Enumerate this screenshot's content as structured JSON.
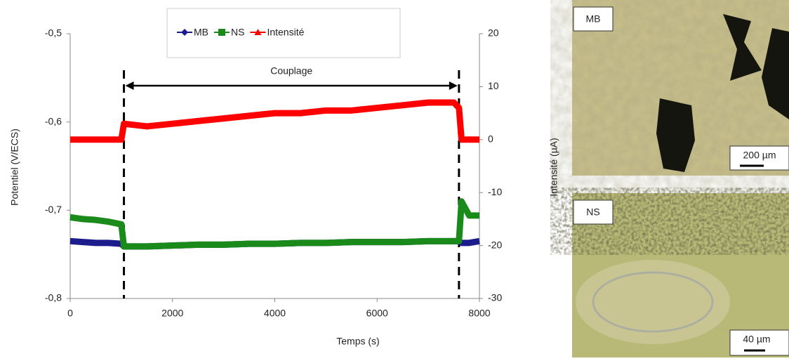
{
  "chart_data": {
    "type": "line",
    "xlabel": "Temps (s)",
    "ylabel": "Potentiel (V/ECS)",
    "y2label": "Intensité (µA)",
    "x": [
      0,
      250,
      500,
      750,
      1000,
      1050,
      1500,
      2000,
      2500,
      3000,
      3500,
      4000,
      4500,
      5000,
      5500,
      6000,
      6500,
      7000,
      7500,
      7600,
      7650,
      7800,
      8000
    ],
    "series": [
      {
        "name": "MB",
        "color": "#1c1c8c",
        "marker": "diamond",
        "values": [
          -0.735,
          -0.736,
          -0.737,
          -0.737,
          -0.738,
          -0.741,
          -0.741,
          -0.74,
          -0.739,
          -0.739,
          -0.738,
          -0.738,
          -0.737,
          -0.737,
          -0.736,
          -0.736,
          -0.736,
          -0.735,
          -0.735,
          -0.735,
          -0.737,
          -0.737,
          -0.735
        ]
      },
      {
        "name": "NS",
        "color": "#1a8a1a",
        "marker": "square",
        "values": [
          -0.708,
          -0.71,
          -0.711,
          -0.713,
          -0.716,
          -0.741,
          -0.741,
          -0.74,
          -0.739,
          -0.739,
          -0.738,
          -0.738,
          -0.737,
          -0.737,
          -0.736,
          -0.736,
          -0.736,
          -0.735,
          -0.735,
          -0.735,
          -0.69,
          -0.706,
          -0.706
        ]
      },
      {
        "name": "Intensité",
        "color": "#ff0000",
        "marker": "triangle",
        "axis": "y2",
        "values": [
          0,
          0,
          0,
          0,
          0,
          3,
          2.5,
          3,
          3.5,
          4,
          4.5,
          5,
          5,
          5.5,
          5.5,
          6,
          6.5,
          7,
          7,
          6,
          0,
          0,
          0
        ]
      }
    ],
    "xlim": [
      0,
      8000
    ],
    "xticks": [
      0,
      2000,
      4000,
      6000,
      8000
    ],
    "ylim": [
      -0.8,
      -0.5
    ],
    "yticks": [
      {
        "value": -0.8,
        "label": "-0,8"
      },
      {
        "value": -0.7,
        "label": "-0,7"
      },
      {
        "value": -0.6,
        "label": "-0,6"
      },
      {
        "value": -0.5,
        "label": "-0,5"
      }
    ],
    "y2lim": [
      -30,
      20
    ],
    "y2ticks": [
      -30,
      -20,
      -10,
      0,
      10,
      20
    ],
    "annotation": {
      "text": "Couplage",
      "x_start": 1050,
      "x_end": 7600
    },
    "legend": "top"
  },
  "micrographs": [
    {
      "label": "MB",
      "scale": "200 µm"
    },
    {
      "label": "NS",
      "scale": "40 µm"
    }
  ]
}
